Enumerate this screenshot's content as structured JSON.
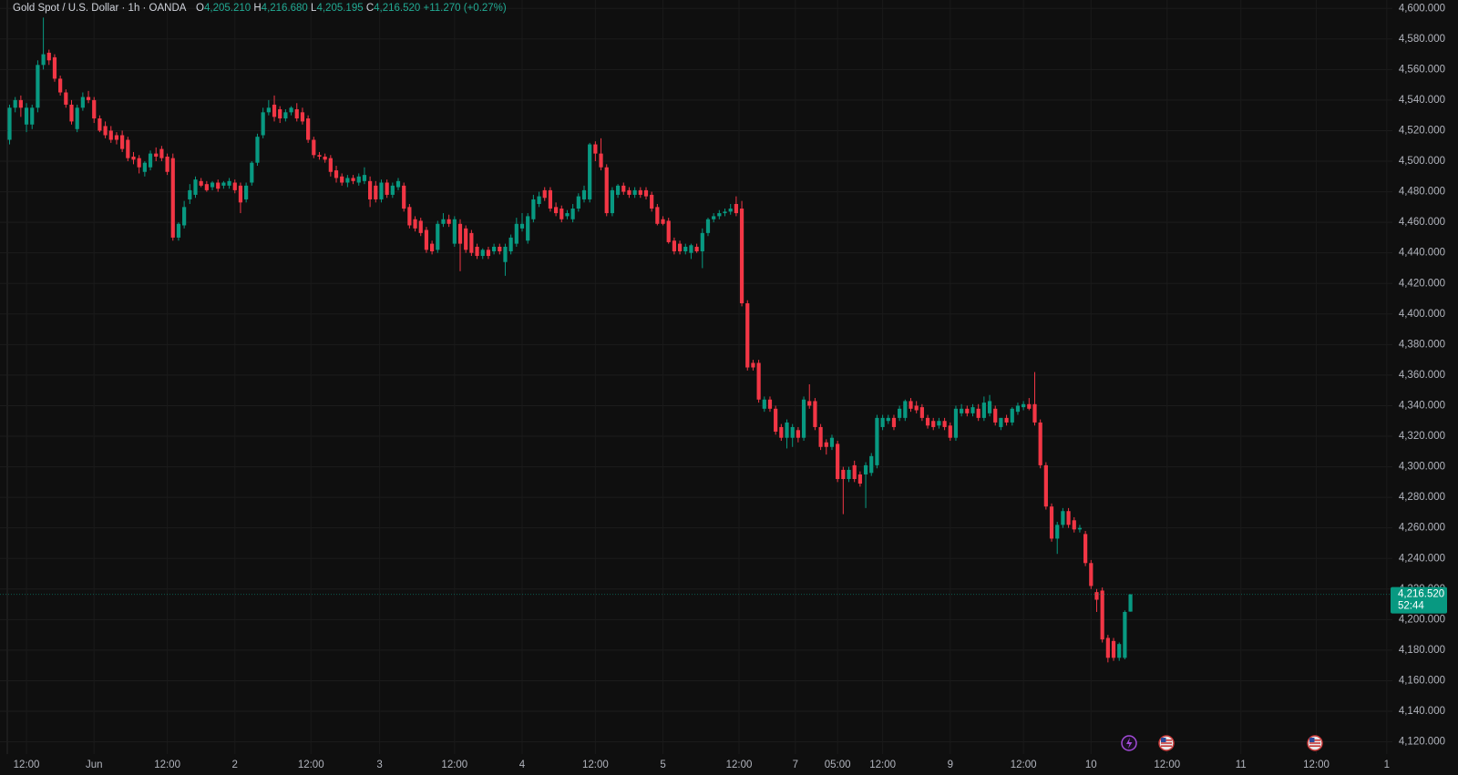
{
  "chart_data": {
    "type": "candlestick",
    "title": "Gold Spot / U.S. Dollar · 1h · OANDA",
    "legend_values": [
      {
        "key": "O",
        "value": "4,205.210"
      },
      {
        "key": "H",
        "value": "4,216.680"
      },
      {
        "key": "L",
        "value": "4,205.195"
      },
      {
        "key": "C",
        "value": "4,216.520"
      }
    ],
    "change": "+11.270 (+0.27%)",
    "up_color": "#089981",
    "down_color": "#f23645",
    "grid": true,
    "open": [
      4514,
      4535,
      4540,
      4524,
      4524,
      4535,
      4563,
      4571,
      4568,
      4554,
      4545,
      4537,
      4521,
      4535,
      4542,
      4540,
      4528,
      4523,
      4520,
      4517,
      4517,
      4514,
      4503,
      4502,
      4493,
      4496,
      4505,
      4508,
      4503,
      4502,
      4450,
      4458,
      4475,
      4478,
      4487,
      4485,
      4483,
      4486,
      4484,
      4484,
      4486,
      4484,
      4475,
      4486,
      4499,
      4517,
      4532,
      4537,
      4534,
      4528,
      4532,
      4534,
      4532,
      4528,
      4514,
      4504,
      4503,
      4502,
      4494,
      4490,
      4486,
      4489,
      4486,
      4487,
      4487,
      4484,
      4475,
      4486,
      4478,
      4483,
      4484,
      4470,
      4462,
      4461,
      4455,
      4446,
      4442,
      4459,
      4462,
      4446,
      4459,
      4456,
      4453,
      4444,
      4438,
      4442,
      4441,
      4444,
      4434,
      4441,
      4446,
      4456,
      4448,
      4462,
      4472,
      4481,
      4481,
      4470,
      4469,
      4464,
      4462,
      4469,
      4475,
      4475,
      4511,
      4505,
      4496,
      4466,
      4478,
      4484,
      4481,
      4478,
      4481,
      4481,
      4478,
      4470,
      4462,
      4461,
      4448,
      4446,
      4441,
      4440,
      4444,
      4441,
      4453,
      4462,
      4464,
      4466,
      4467,
      4472,
      4469,
      4407,
      4368,
      4368,
      4338,
      4344,
      4338,
      4326,
      4319,
      4319,
      4324,
      4319,
      4343,
      4343,
      4326,
      4316,
      4313,
      4315,
      4298,
      4292,
      4301,
      4295,
      4295,
      4296,
      4301,
      4326,
      4330,
      4332,
      4332,
      4332,
      4343,
      4340,
      4339,
      4332,
      4330,
      4327,
      4330,
      4327,
      4319,
      4335,
      4338,
      4335,
      4338,
      4332,
      4335,
      4338,
      4326,
      4332,
      4329,
      4336,
      4339,
      4341,
      4341,
      4329,
      4301,
      4274,
      4253,
      4262,
      4271,
      4265,
      4259,
      4256,
      4237,
      4218,
      4219,
      4188,
      4186,
      4175,
      4175,
      4205.21
    ],
    "high": [
      4537,
      4542,
      4543,
      4538,
      4537,
      4566,
      4594,
      4573,
      4570,
      4556,
      4547,
      4540,
      4537,
      4545,
      4546,
      4542,
      4530,
      4526,
      4523,
      4519,
      4520,
      4516,
      4506,
      4504,
      4500,
      4507,
      4509,
      4510,
      4505,
      4505,
      4460,
      4474,
      4485,
      4490,
      4489,
      4487,
      4487,
      4488,
      4487,
      4489,
      4488,
      4486,
      4486,
      4500,
      4518,
      4535,
      4540,
      4543,
      4536,
      4534,
      4536,
      4538,
      4535,
      4530,
      4516,
      4506,
      4505,
      4504,
      4497,
      4492,
      4491,
      4491,
      4492,
      4496,
      4490,
      4487,
      4488,
      4488,
      4486,
      4489,
      4486,
      4472,
      4464,
      4463,
      4457,
      4448,
      4461,
      4466,
      4465,
      4464,
      4462,
      4458,
      4455,
      4446,
      4443,
      4444,
      4446,
      4446,
      4446,
      4452,
      4463,
      4466,
      4466,
      4478,
      4480,
      4483,
      4483,
      4473,
      4471,
      4468,
      4472,
      4479,
      4484,
      4512,
      4513,
      4515,
      4498,
      4483,
      4485,
      4486,
      4483,
      4483,
      4483,
      4483,
      4480,
      4472,
      4464,
      4463,
      4450,
      4448,
      4446,
      4446,
      4446,
      4456,
      4463,
      4466,
      4468,
      4469,
      4472,
      4477,
      4474,
      4409,
      4370,
      4370,
      4346,
      4346,
      4340,
      4328,
      4331,
      4328,
      4326,
      4346,
      4354,
      4345,
      4328,
      4318,
      4321,
      4317,
      4300,
      4300,
      4304,
      4297,
      4303,
      4309,
      4334,
      4334,
      4334,
      4334,
      4340,
      4344,
      4345,
      4343,
      4341,
      4334,
      4332,
      4332,
      4332,
      4329,
      4340,
      4341,
      4340,
      4341,
      4341,
      4346,
      4347,
      4340,
      4332,
      4334,
      4339,
      4342,
      4343,
      4345,
      4362,
      4331,
      4303,
      4276,
      4264,
      4273,
      4273,
      4267,
      4262,
      4258,
      4239,
      4220,
      4221,
      4190,
      4188,
      4185,
      4206,
      4216.68
    ],
    "low": [
      4511,
      4532,
      4529,
      4519,
      4521,
      4532,
      4560,
      4563,
      4552,
      4543,
      4535,
      4524,
      4519,
      4533,
      4538,
      4525,
      4519,
      4515,
      4512,
      4511,
      4506,
      4500,
      4498,
      4492,
      4490,
      4494,
      4500,
      4500,
      4491,
      4448,
      4448,
      4456,
      4472,
      4476,
      4483,
      4480,
      4481,
      4480,
      4482,
      4482,
      4479,
      4466,
      4473,
      4484,
      4497,
      4515,
      4530,
      4526,
      4525,
      4526,
      4530,
      4526,
      4524,
      4512,
      4502,
      4501,
      4499,
      4490,
      4486,
      4484,
      4483,
      4485,
      4484,
      4485,
      4470,
      4473,
      4473,
      4476,
      4476,
      4481,
      4467,
      4456,
      4454,
      4451,
      4440,
      4439,
      4440,
      4457,
      4457,
      4444,
      4428,
      4440,
      4438,
      4436,
      4436,
      4436,
      4439,
      4439,
      4425,
      4439,
      4444,
      4454,
      4446,
      4460,
      4470,
      4474,
      4467,
      4464,
      4460,
      4462,
      4460,
      4467,
      4473,
      4473,
      4500,
      4494,
      4464,
      4464,
      4476,
      4478,
      4476,
      4476,
      4476,
      4475,
      4467,
      4458,
      4458,
      4446,
      4439,
      4439,
      4439,
      4436,
      4440,
      4430,
      4451,
      4460,
      4462,
      4464,
      4465,
      4464,
      4405,
      4363,
      4363,
      4342,
      4336,
      4336,
      4321,
      4317,
      4312,
      4313,
      4316,
      4317,
      4338,
      4324,
      4311,
      4308,
      4311,
      4290,
      4269,
      4290,
      4290,
      4287,
      4273,
      4294,
      4299,
      4324,
      4328,
      4324,
      4330,
      4330,
      4336,
      4335,
      4330,
      4325,
      4324,
      4325,
      4324,
      4317,
      4317,
      4333,
      4333,
      4333,
      4330,
      4330,
      4333,
      4327,
      4324,
      4327,
      4327,
      4334,
      4337,
      4337,
      4327,
      4299,
      4272,
      4251,
      4243,
      4260,
      4260,
      4257,
      4257,
      4235,
      4220,
      4205,
      4185,
      4172,
      4173,
      4173,
      4174,
      4205.195
    ],
    "close": [
      4535,
      4540,
      4535,
      4535,
      4535,
      4563,
      4570,
      4566,
      4554,
      4545,
      4537,
      4526,
      4535,
      4542,
      4540,
      4528,
      4520,
      4517,
      4514,
      4514,
      4508,
      4502,
      4501,
      4496,
      4499,
      4505,
      4503,
      4502,
      4493,
      4450,
      4459,
      4470,
      4481,
      4488,
      4484,
      4481,
      4486,
      4482,
      4486,
      4487,
      4481,
      4473,
      4484,
      4499,
      4516,
      4532,
      4535,
      4529,
      4528,
      4532,
      4535,
      4528,
      4526,
      4514,
      4504,
      4503,
      4501,
      4493,
      4489,
      4486,
      4489,
      4487,
      4490,
      4491,
      4475,
      4475,
      4486,
      4478,
      4484,
      4487,
      4469,
      4458,
      4456,
      4453,
      4442,
      4441,
      4459,
      4462,
      4459,
      4462,
      4446,
      4442,
      4440,
      4438,
      4442,
      4438,
      4444,
      4441,
      4444,
      4450,
      4459,
      4459,
      4464,
      4475,
      4477,
      4476,
      4469,
      4466,
      4462,
      4466,
      4469,
      4477,
      4481,
      4511,
      4505,
      4496,
      4466,
      4481,
      4484,
      4480,
      4478,
      4481,
      4478,
      4477,
      4469,
      4459,
      4459,
      4447,
      4441,
      4441,
      4444,
      4445,
      4441,
      4453,
      4462,
      4464,
      4466,
      4467,
      4469,
      4466,
      4407,
      4365,
      4365,
      4344,
      4344,
      4338,
      4323,
      4319,
      4329,
      4326,
      4319,
      4344,
      4340,
      4326,
      4313,
      4313,
      4319,
      4292,
      4292,
      4298,
      4292,
      4289,
      4301,
      4307,
      4332,
      4332,
      4332,
      4326,
      4338,
      4343,
      4338,
      4337,
      4332,
      4327,
      4326,
      4330,
      4326,
      4319,
      4338,
      4338,
      4335,
      4339,
      4332,
      4342,
      4343,
      4329,
      4332,
      4329,
      4338,
      4340,
      4341,
      4338,
      4329,
      4301,
      4274,
      4253,
      4262,
      4271,
      4262,
      4259,
      4260,
      4237,
      4222,
      4213,
      4187,
      4175,
      4175,
      4184,
      4205,
      4216.52
    ],
    "xlim": [
      -1.7,
      245.5
    ],
    "xticks": [
      {
        "value": 3,
        "label": "12:00"
      },
      {
        "value": 15,
        "label": "Jun"
      },
      {
        "value": 28,
        "label": "12:00"
      },
      {
        "value": 40,
        "label": "2"
      },
      {
        "value": 53.5,
        "label": "12:00"
      },
      {
        "value": 65.7,
        "label": "3"
      },
      {
        "value": 79,
        "label": "12:00"
      },
      {
        "value": 91,
        "label": "4"
      },
      {
        "value": 104,
        "label": "12:00"
      },
      {
        "value": 116,
        "label": "5"
      },
      {
        "value": 129.5,
        "label": "12:00"
      },
      {
        "value": 139.5,
        "label": "7"
      },
      {
        "value": 147,
        "label": "05:00"
      },
      {
        "value": 155,
        "label": "12:00"
      },
      {
        "value": 167,
        "label": "9"
      },
      {
        "value": 180,
        "label": "12:00"
      },
      {
        "value": 192,
        "label": "10"
      },
      {
        "value": 205.5,
        "label": "12:00"
      },
      {
        "value": 218.6,
        "label": "11"
      },
      {
        "value": 232,
        "label": "12:00"
      },
      {
        "value": 244.5,
        "label": "1"
      }
    ],
    "ylim": [
      4112,
      4605.5
    ],
    "yticks": [
      {
        "value": 4120,
        "label": "4,120.000"
      },
      {
        "value": 4140,
        "label": "4,140.000"
      },
      {
        "value": 4160,
        "label": "4,160.000"
      },
      {
        "value": 4180,
        "label": "4,180.000"
      },
      {
        "value": 4200,
        "label": "4,200.000"
      },
      {
        "value": 4220,
        "label": "4,220.000"
      },
      {
        "value": 4240,
        "label": "4,240.000"
      },
      {
        "value": 4260,
        "label": "4,260.000"
      },
      {
        "value": 4280,
        "label": "4,280.000"
      },
      {
        "value": 4300,
        "label": "4,300.000"
      },
      {
        "value": 4320,
        "label": "4,320.000"
      },
      {
        "value": 4340,
        "label": "4,340.000"
      },
      {
        "value": 4360,
        "label": "4,360.000"
      },
      {
        "value": 4380,
        "label": "4,380.000"
      },
      {
        "value": 4400,
        "label": "4,400.000"
      },
      {
        "value": 4420,
        "label": "4,420.000"
      },
      {
        "value": 4440,
        "label": "4,440.000"
      },
      {
        "value": 4460,
        "label": "4,460.000"
      },
      {
        "value": 4480,
        "label": "4,480.000"
      },
      {
        "value": 4500,
        "label": "4,500.000"
      },
      {
        "value": 4520,
        "label": "4,520.000"
      },
      {
        "value": 4540,
        "label": "4,540.000"
      },
      {
        "value": 4560,
        "label": "4,560.000"
      },
      {
        "value": 4580,
        "label": "4,580.000"
      },
      {
        "value": 4600,
        "label": "4,600.000"
      }
    ],
    "last_price": {
      "value": 4216.52,
      "label": "4,216.520",
      "countdown": "52:44"
    }
  }
}
